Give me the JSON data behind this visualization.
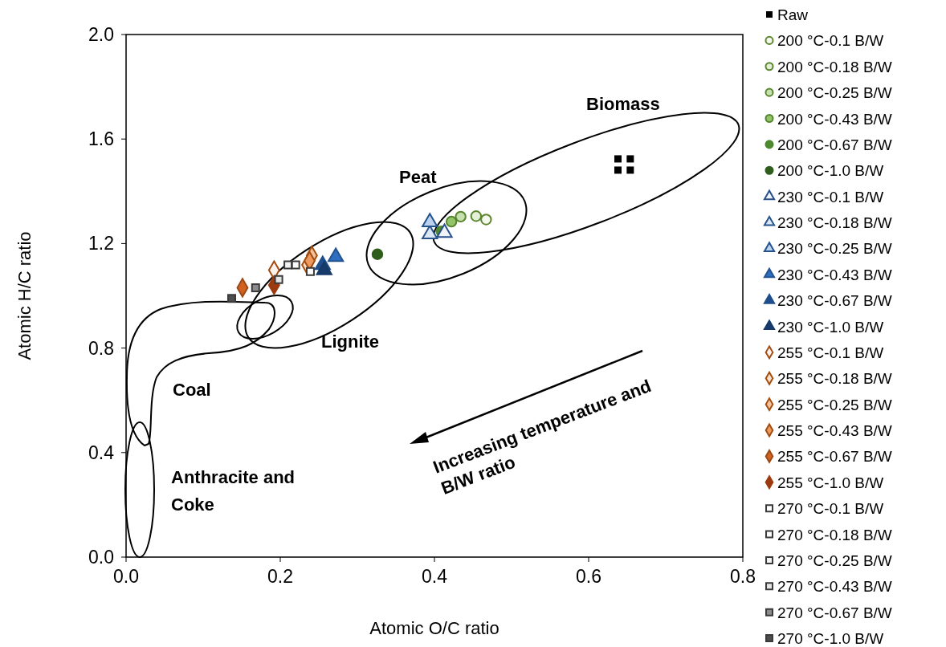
{
  "chart_data": {
    "type": "scatter",
    "xlabel": "Atomic O/C ratio",
    "ylabel": "Atomic H/C ratio",
    "xlim": [
      0,
      0.8
    ],
    "ylim": [
      0,
      2.0
    ],
    "xticks": [
      {
        "value": 0,
        "label": "0.0"
      },
      0.2,
      0.4,
      0.6,
      0.8
    ],
    "yticks": [
      {
        "value": 0,
        "label": "0.0"
      },
      0.4,
      0.8,
      1.2,
      1.6,
      {
        "value": 2,
        "label": "2.0"
      }
    ],
    "grid": false,
    "legend": "right",
    "line_style": "solid",
    "annotations": [
      "Biomass",
      "Peat",
      "Lignite",
      "Coal",
      "Anthracite and\nCoke",
      "Increasing temperature and\nB/W ratio"
    ],
    "series": [
      {
        "name": "Raw",
        "marker": "square",
        "color": "#000000",
        "x": [
          0.638,
          0.654,
          0.638,
          0.654
        ],
        "values": [
          1.524,
          1.524,
          1.481,
          1.481
        ]
      },
      {
        "name": "200 °C-0.1 B/W",
        "marker": "circle",
        "color": "#f4f8ef",
        "x": [
          0.467
        ],
        "values": [
          1.292
        ]
      },
      {
        "name": "200 °C-0.18 B/W",
        "marker": "circle",
        "color": "#e3efd6",
        "x": [
          0.454
        ],
        "values": [
          1.305
        ]
      },
      {
        "name": "200 °C-0.25 B/W",
        "marker": "circle",
        "color": "#c6e0ae",
        "x": [
          0.434
        ],
        "values": [
          1.303
        ]
      },
      {
        "name": "200 °C-0.43 B/W",
        "marker": "circle",
        "color": "#93c46a",
        "x": [
          0.422
        ],
        "values": [
          1.284
        ]
      },
      {
        "name": "200 °C-0.67 B/W",
        "marker": "circle",
        "color": "#4e8a2e",
        "x": [
          0.409
        ],
        "values": [
          1.247
        ]
      },
      {
        "name": "200 °C-1.0 B/W",
        "marker": "circle",
        "color": "#2f5e1c",
        "x": [
          0.326
        ],
        "values": [
          1.159
        ]
      },
      {
        "name": "230 °C-0.1 B/W",
        "marker": "triangle",
        "color": "#f1f5fb",
        "x": [
          0.413
        ],
        "values": [
          1.241
        ]
      },
      {
        "name": "230 °C-0.18 B/W",
        "marker": "triangle",
        "color": "#dce7f5",
        "x": [
          0.394
        ],
        "values": [
          1.236
        ]
      },
      {
        "name": "230 °C-0.25 B/W",
        "marker": "triangle",
        "color": "#bcd2ee",
        "x": [
          0.394
        ],
        "values": [
          1.282
        ]
      },
      {
        "name": "230 °C-0.43 B/W",
        "marker": "triangle",
        "color": "#2f6fc0",
        "x": [
          0.272
        ],
        "values": [
          1.149
        ]
      },
      {
        "name": "230 °C-0.67 B/W",
        "marker": "triangle",
        "color": "#1f4e8c",
        "x": [
          0.255
        ],
        "values": [
          1.118
        ]
      },
      {
        "name": "230 °C-1.0 B/W",
        "marker": "triangle",
        "color": "#163a6a",
        "x": [
          0.257
        ],
        "values": [
          1.098
        ]
      },
      {
        "name": "255 °C-0.1 B/W",
        "marker": "diamond",
        "color": "#fdf3ec",
        "x": [
          0.192
        ],
        "values": [
          1.098
        ]
      },
      {
        "name": "255 °C-0.18 B/W",
        "marker": "diamond",
        "color": "#fbe0cc",
        "x": [
          0.235
        ],
        "values": [
          1.118
        ]
      },
      {
        "name": "255 °C-0.25 B/W",
        "marker": "diamond",
        "color": "#f5c29c",
        "x": [
          0.241
        ],
        "values": [
          1.154
        ]
      },
      {
        "name": "255 °C-0.43 B/W",
        "marker": "diamond",
        "color": "#ee9a5e",
        "x": [
          0.238
        ],
        "values": [
          1.134
        ]
      },
      {
        "name": "255 °C-0.67 B/W",
        "marker": "diamond",
        "color": "#d0631f",
        "x": [
          0.151
        ],
        "values": [
          1.031
        ]
      },
      {
        "name": "255 °C-1.0 B/W",
        "marker": "diamond",
        "color": "#9c3b10",
        "x": [
          0.192
        ],
        "values": [
          1.041
        ]
      },
      {
        "name": "270 °C-0.1 B/W",
        "marker": "square",
        "color": "#ffffff",
        "x": [
          0.239
        ],
        "values": [
          1.093
        ]
      },
      {
        "name": "270 °C-0.18 B/W",
        "marker": "square",
        "color": "#fafafa",
        "x": [
          0.22
        ],
        "values": [
          1.118
        ]
      },
      {
        "name": "270 °C-0.25 B/W",
        "marker": "square",
        "color": "#f2f2f2",
        "x": [
          0.21
        ],
        "values": [
          1.118
        ]
      },
      {
        "name": "270 °C-0.43 B/W",
        "marker": "square",
        "color": "#e6e6e6",
        "x": [
          0.198
        ],
        "values": [
          1.062
        ]
      },
      {
        "name": "270 °C-0.67 B/W",
        "marker": "square",
        "color": "#8c8c8c",
        "x": [
          0.168
        ],
        "values": [
          1.031
        ]
      },
      {
        "name": "270 °C-1.0 B/W",
        "marker": "square",
        "color": "#4d4d4d",
        "x": [
          0.137
        ],
        "values": [
          0.99
        ]
      }
    ]
  }
}
